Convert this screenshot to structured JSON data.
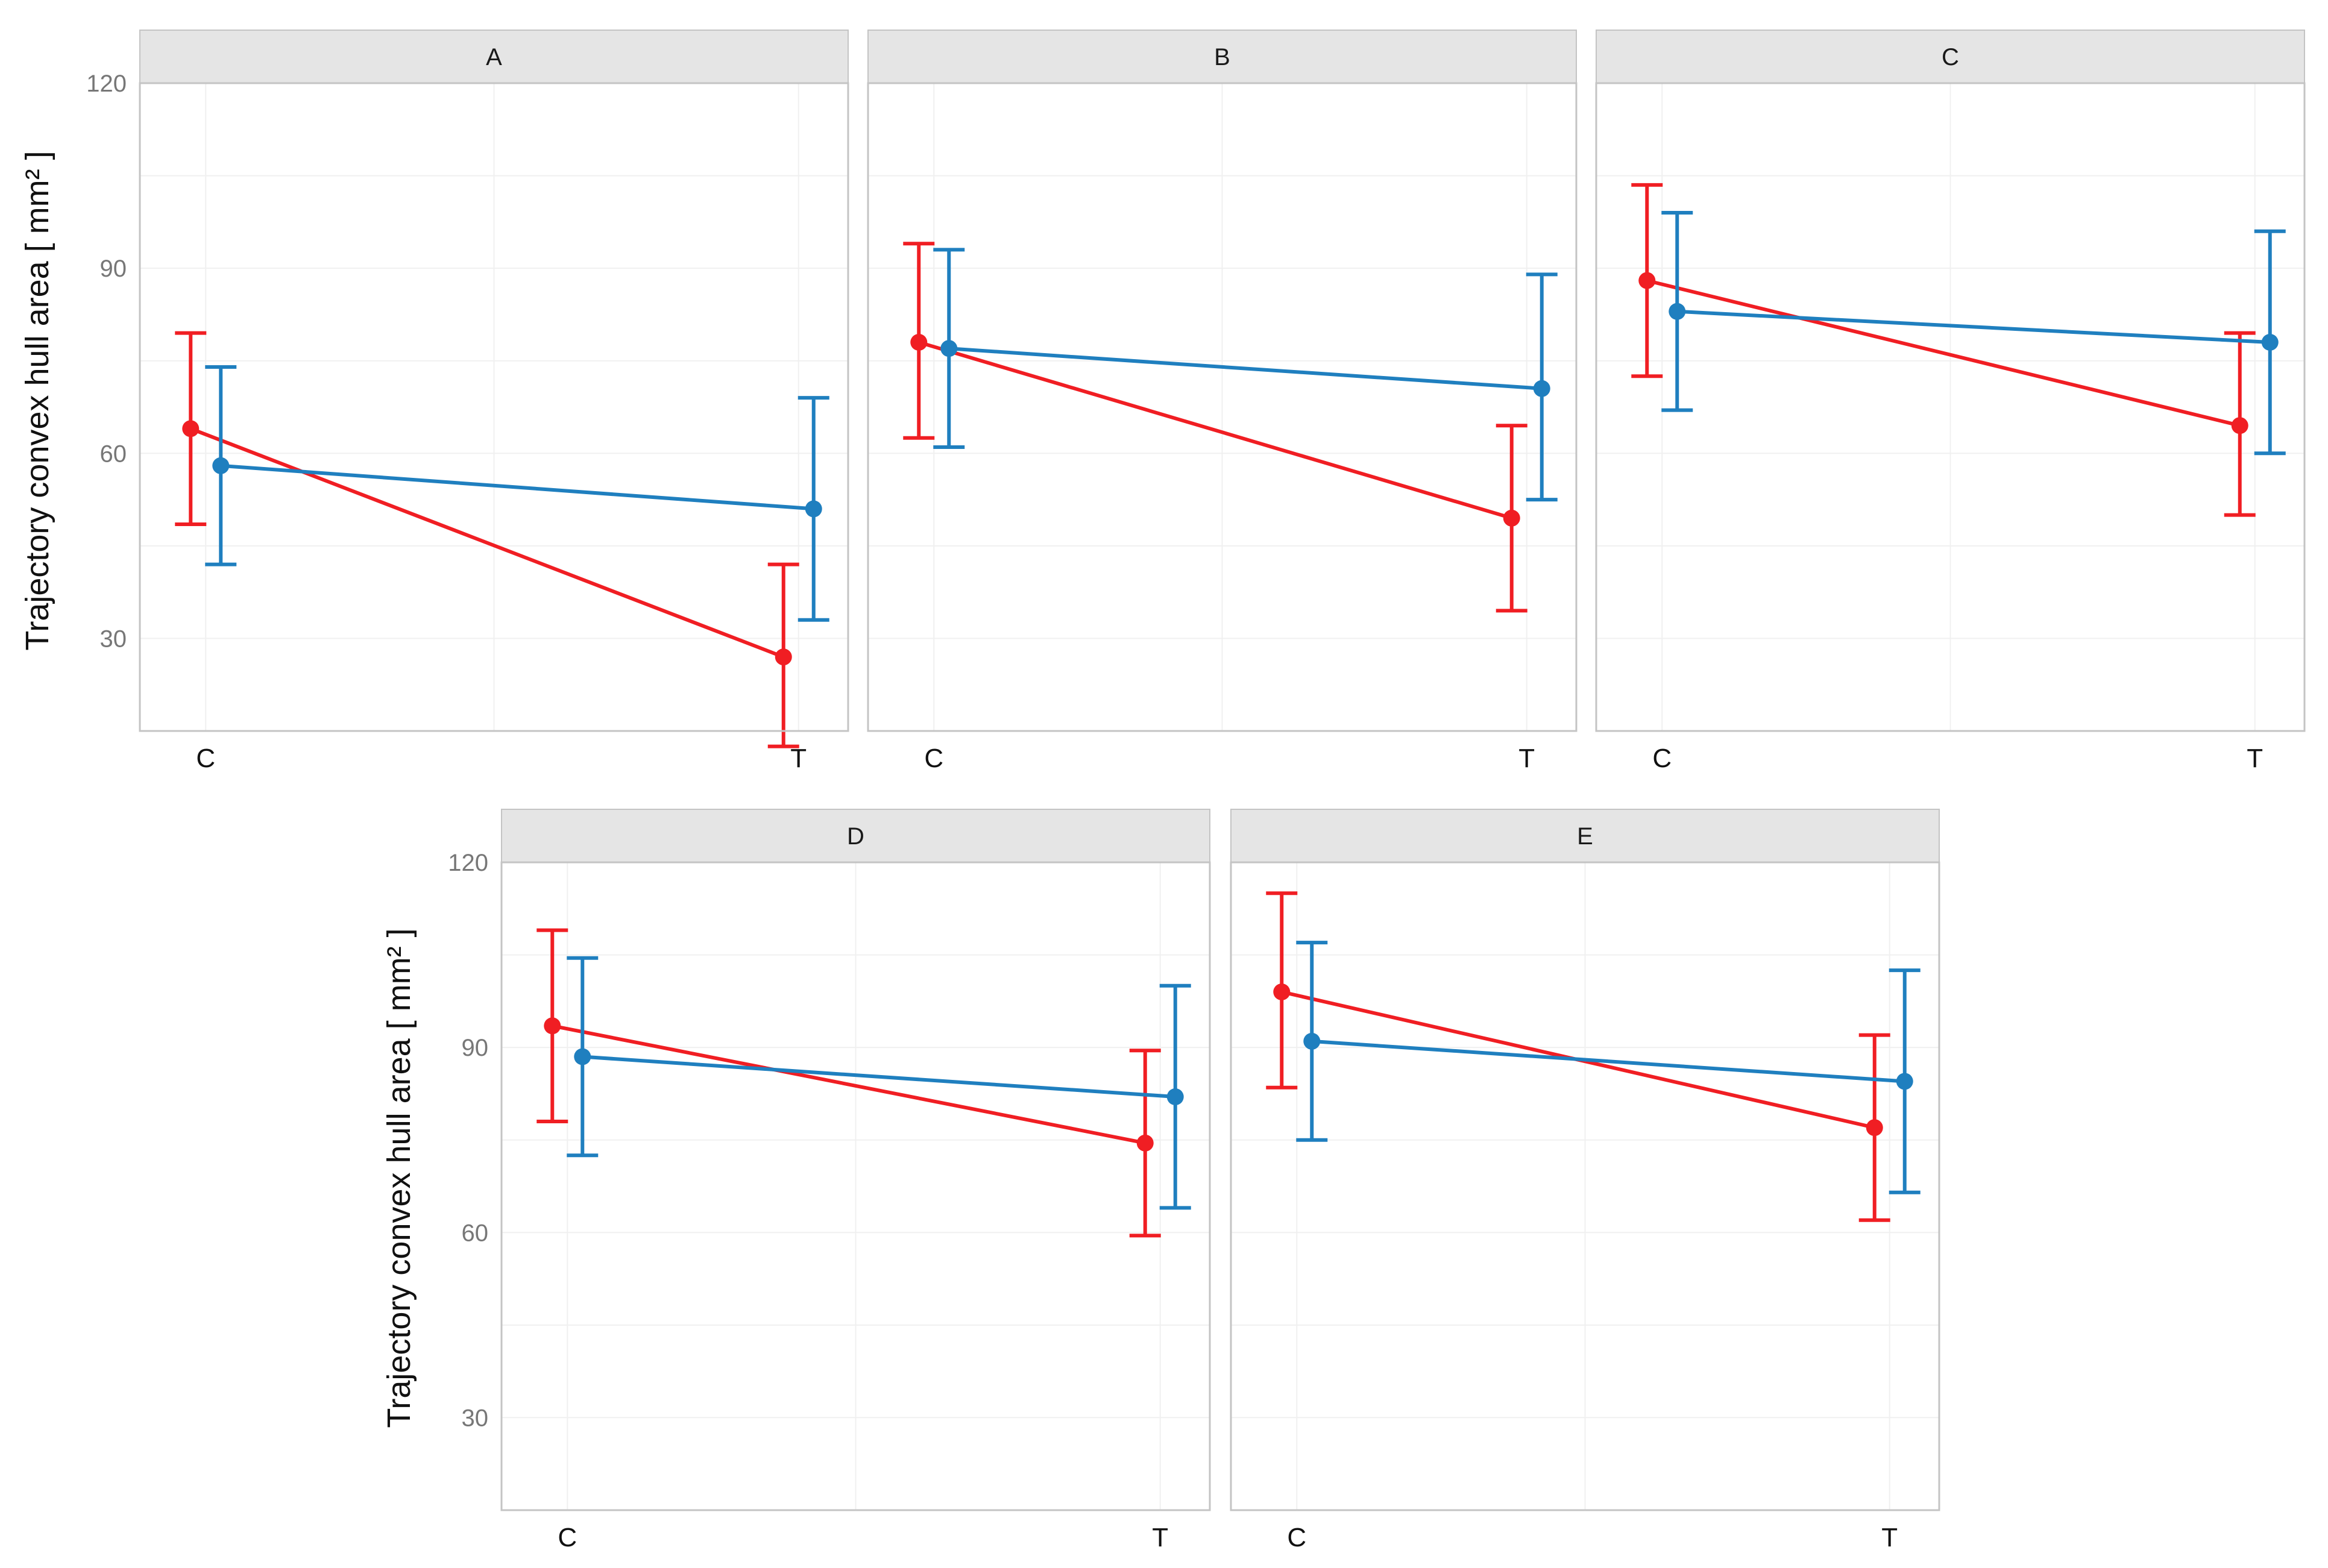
{
  "y_axis_label": "Trajectory convex hull area [ mm² ]",
  "colors": {
    "series_red": "#f01e23",
    "series_blue": "#1f7fbf",
    "strip_fill": "#e5e5e5",
    "panel_border": "#c4c4c4",
    "grid": "#f0f0f0"
  },
  "chart_data": [
    {
      "type": "line",
      "panel": "A",
      "categories": [
        "C",
        "T"
      ],
      "ylim": [
        15,
        120
      ],
      "yticks": [
        30,
        60,
        90,
        120
      ],
      "grid": true,
      "error_bars": true,
      "series": [
        {
          "color": "#f01e23",
          "values": [
            64,
            27
          ],
          "lower": [
            48.5,
            12.5
          ],
          "upper": [
            79.5,
            42
          ]
        },
        {
          "color": "#1f7fbf",
          "values": [
            58,
            51
          ],
          "lower": [
            42,
            33
          ],
          "upper": [
            74,
            69
          ]
        }
      ]
    },
    {
      "type": "line",
      "panel": "B",
      "categories": [
        "C",
        "T"
      ],
      "ylim": [
        15,
        120
      ],
      "yticks": [
        30,
        60,
        90,
        120
      ],
      "grid": true,
      "error_bars": true,
      "series": [
        {
          "color": "#f01e23",
          "values": [
            78,
            49.5
          ],
          "lower": [
            62.5,
            34.5
          ],
          "upper": [
            94,
            64.5
          ]
        },
        {
          "color": "#1f7fbf",
          "values": [
            77,
            70.5
          ],
          "lower": [
            61,
            52.5
          ],
          "upper": [
            93,
            89
          ]
        }
      ]
    },
    {
      "type": "line",
      "panel": "C",
      "categories": [
        "C",
        "T"
      ],
      "ylim": [
        15,
        120
      ],
      "yticks": [
        30,
        60,
        90,
        120
      ],
      "grid": true,
      "error_bars": true,
      "series": [
        {
          "color": "#f01e23",
          "values": [
            88,
            64.5
          ],
          "lower": [
            72.5,
            50
          ],
          "upper": [
            103.5,
            79.5
          ]
        },
        {
          "color": "#1f7fbf",
          "values": [
            83,
            78
          ],
          "lower": [
            67,
            60
          ],
          "upper": [
            99,
            96
          ]
        }
      ]
    },
    {
      "type": "line",
      "panel": "D",
      "categories": [
        "C",
        "T"
      ],
      "ylim": [
        15,
        120
      ],
      "yticks": [
        30,
        60,
        90,
        120
      ],
      "grid": true,
      "error_bars": true,
      "series": [
        {
          "color": "#f01e23",
          "values": [
            93.5,
            74.5
          ],
          "lower": [
            78,
            59.5
          ],
          "upper": [
            109,
            89.5
          ]
        },
        {
          "color": "#1f7fbf",
          "values": [
            88.5,
            82
          ],
          "lower": [
            72.5,
            64
          ],
          "upper": [
            104.5,
            100
          ]
        }
      ]
    },
    {
      "type": "line",
      "panel": "E",
      "categories": [
        "C",
        "T"
      ],
      "ylim": [
        15,
        120
      ],
      "yticks": [
        30,
        60,
        90,
        120
      ],
      "grid": true,
      "error_bars": true,
      "series": [
        {
          "color": "#f01e23",
          "values": [
            99,
            77
          ],
          "lower": [
            83.5,
            62
          ],
          "upper": [
            115,
            92
          ]
        },
        {
          "color": "#1f7fbf",
          "values": [
            91,
            84.5
          ],
          "lower": [
            75,
            66.5
          ],
          "upper": [
            107,
            102.5
          ]
        }
      ]
    }
  ]
}
